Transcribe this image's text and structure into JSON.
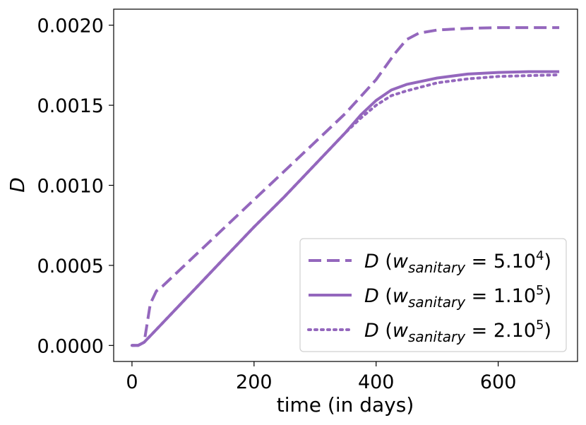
{
  "chart_data": {
    "type": "line",
    "title": "",
    "xlabel": "time (in days)",
    "ylabel": "D",
    "xlim": [
      -30,
      730
    ],
    "ylim": [
      -0.0001,
      0.0021
    ],
    "x_ticks": [
      0,
      200,
      400,
      600
    ],
    "x_tick_labels": [
      "0",
      "200",
      "400",
      "600"
    ],
    "y_ticks": [
      0,
      0.0005,
      0.001,
      0.0015,
      0.002
    ],
    "y_tick_labels": [
      "0.0000",
      "0.0005",
      "0.0010",
      "0.0015",
      "0.0020"
    ],
    "grid": false,
    "legend_position": "lower-right",
    "color": "#9467bd",
    "series": [
      {
        "name": "D (w_sanitary = 5.10^4)",
        "legend": {
          "main": "D (w",
          "sub": "sanitary",
          "eq": " = 5.10",
          "sup": "4",
          "close": ")"
        },
        "style": "dashed",
        "x": [
          0,
          10,
          20,
          30,
          40,
          50,
          75,
          100,
          150,
          200,
          250,
          300,
          350,
          400,
          430,
          450,
          470,
          500,
          550,
          600,
          650,
          700
        ],
        "y": [
          0,
          0,
          2e-05,
          0.00026,
          0.00034,
          0.00037,
          0.00046,
          0.00055,
          0.00073,
          0.00091,
          0.00109,
          0.00127,
          0.00145,
          0.00166,
          0.00182,
          0.00191,
          0.00195,
          0.00197,
          0.00198,
          0.001985,
          0.001985,
          0.001985
        ]
      },
      {
        "name": "D (w_sanitary = 1.10^5)",
        "legend": {
          "main": "D (w",
          "sub": "sanitary",
          "eq": " = 1.10",
          "sup": "5",
          "close": ")"
        },
        "style": "solid",
        "x": [
          0,
          10,
          20,
          30,
          50,
          100,
          150,
          200,
          250,
          300,
          350,
          375,
          400,
          425,
          450,
          500,
          550,
          600,
          650,
          700
        ],
        "y": [
          0,
          0,
          2e-05,
          6e-05,
          0.00014,
          0.00034,
          0.00054,
          0.00074,
          0.00093,
          0.00113,
          0.00133,
          0.00144,
          0.00153,
          0.001595,
          0.00163,
          0.00167,
          0.001695,
          0.001705,
          0.00171,
          0.00171
        ]
      },
      {
        "name": "D (w_sanitary = 2.10^5)",
        "legend": {
          "main": "D (w",
          "sub": "sanitary",
          "eq": " = 2.10",
          "sup": "5",
          "close": ")"
        },
        "style": "dotted",
        "x": [
          0,
          10,
          20,
          30,
          50,
          100,
          150,
          200,
          250,
          300,
          350,
          375,
          400,
          425,
          450,
          500,
          550,
          600,
          650,
          700
        ],
        "y": [
          0,
          0,
          2e-05,
          6e-05,
          0.00014,
          0.00034,
          0.00054,
          0.00074,
          0.00093,
          0.00113,
          0.00133,
          0.00142,
          0.0015,
          0.00156,
          0.00159,
          0.00164,
          0.001665,
          0.00168,
          0.001685,
          0.00169
        ]
      }
    ]
  }
}
